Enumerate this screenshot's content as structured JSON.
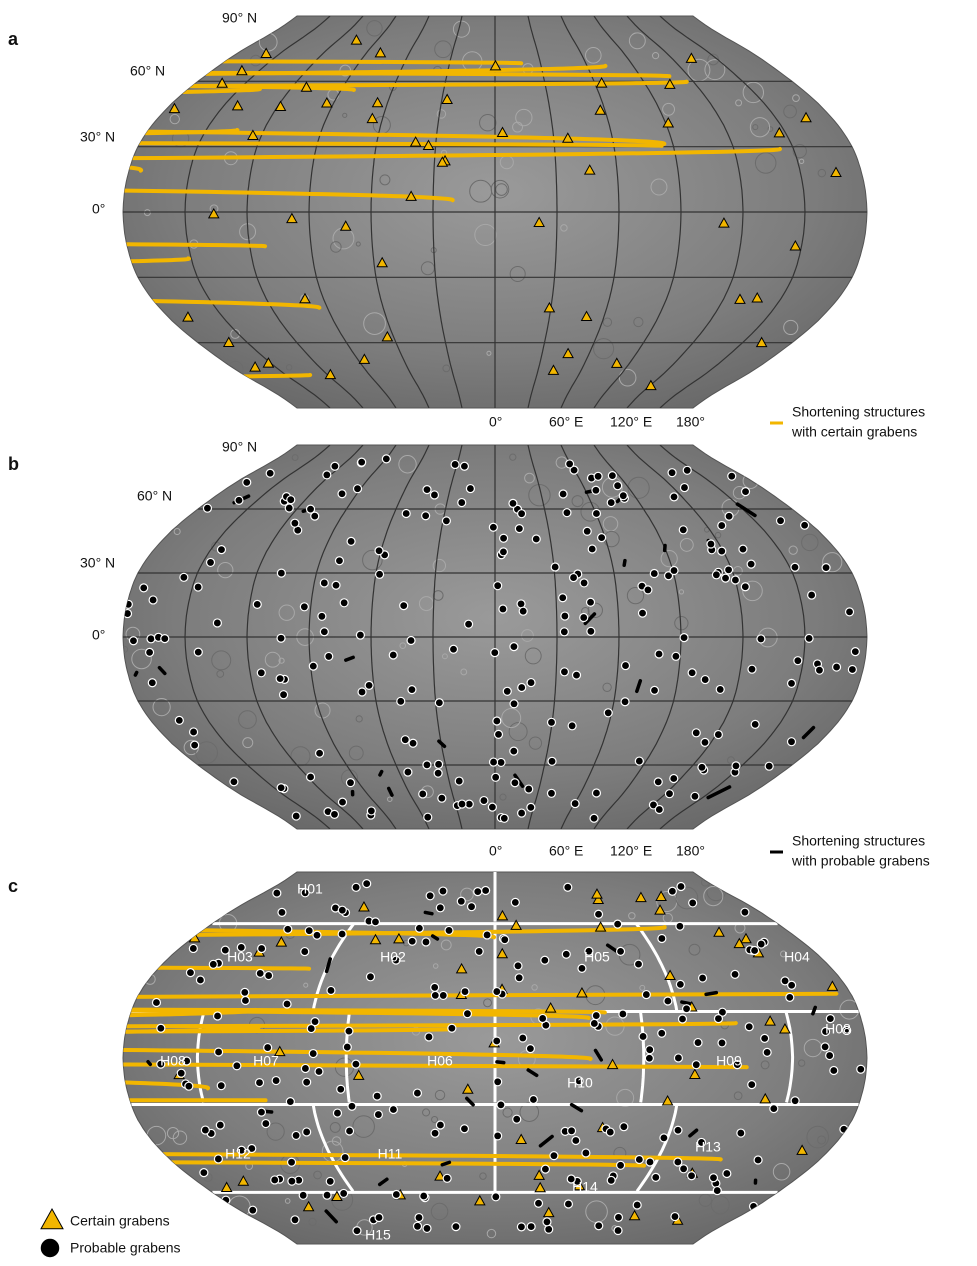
{
  "panels": [
    {
      "label": "a",
      "lat_labels": [
        "90° N",
        "60° N",
        "30° N",
        "0°"
      ],
      "lon_labels": [
        "0°",
        "60° E",
        "120° E",
        "180°"
      ],
      "legend": [
        "Shortening structures",
        "with certain grabens"
      ]
    },
    {
      "label": "b",
      "lat_labels": [
        "90° N",
        "60° N",
        "30° N",
        "0°"
      ],
      "lon_labels": [
        "0°",
        "60° E",
        "120° E",
        "180°"
      ],
      "legend": [
        "Shortening structures",
        "with probable grabens"
      ]
    },
    {
      "label": "c",
      "quadrangles": [
        "H01",
        "H03",
        "H02",
        "H05",
        "H04",
        "H08",
        "H08",
        "H07",
        "H06",
        "H10",
        "H09",
        "H12",
        "H11",
        "H14",
        "H13",
        "H15"
      ],
      "legend": [
        "Certain grabens",
        "Probable grabens"
      ]
    }
  ]
}
